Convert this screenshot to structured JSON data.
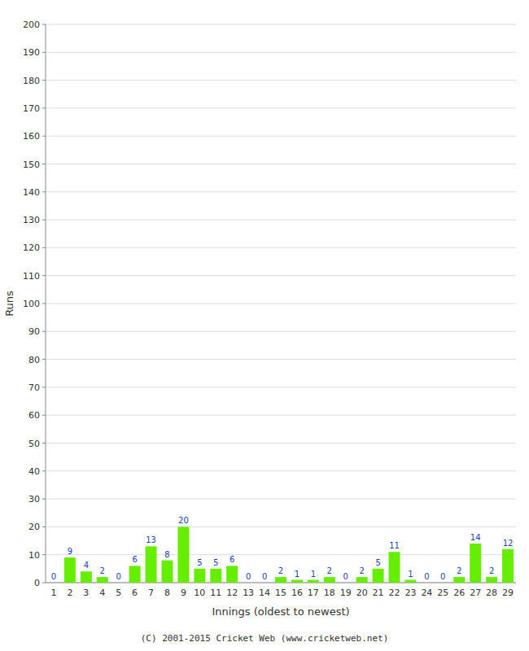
{
  "chart_data": {
    "type": "bar",
    "x_label": "Innings (oldest to newest)",
    "y_label": "Runs",
    "categories": [
      "1",
      "2",
      "3",
      "4",
      "5",
      "6",
      "7",
      "8",
      "9",
      "10",
      "11",
      "12",
      "13",
      "14",
      "15",
      "16",
      "17",
      "18",
      "19",
      "20",
      "21",
      "22",
      "23",
      "24",
      "25",
      "26",
      "27",
      "28",
      "29"
    ],
    "values": [
      0,
      9,
      4,
      2,
      0,
      6,
      13,
      8,
      20,
      5,
      5,
      6,
      0,
      0,
      2,
      1,
      1,
      2,
      0,
      2,
      5,
      11,
      1,
      0,
      0,
      2,
      14,
      2,
      12
    ],
    "color": "#66ee00",
    "ylim": [
      0,
      200
    ],
    "yticks": [
      0,
      10,
      20,
      30,
      40,
      50,
      60,
      70,
      80,
      90,
      100,
      110,
      120,
      130,
      140,
      150,
      160,
      170,
      180,
      190,
      200
    ],
    "grid": true,
    "data_labels": true,
    "annotations": [
      "(C) 2001-2015 Cricket Web (www.cricketweb.net)"
    ]
  }
}
